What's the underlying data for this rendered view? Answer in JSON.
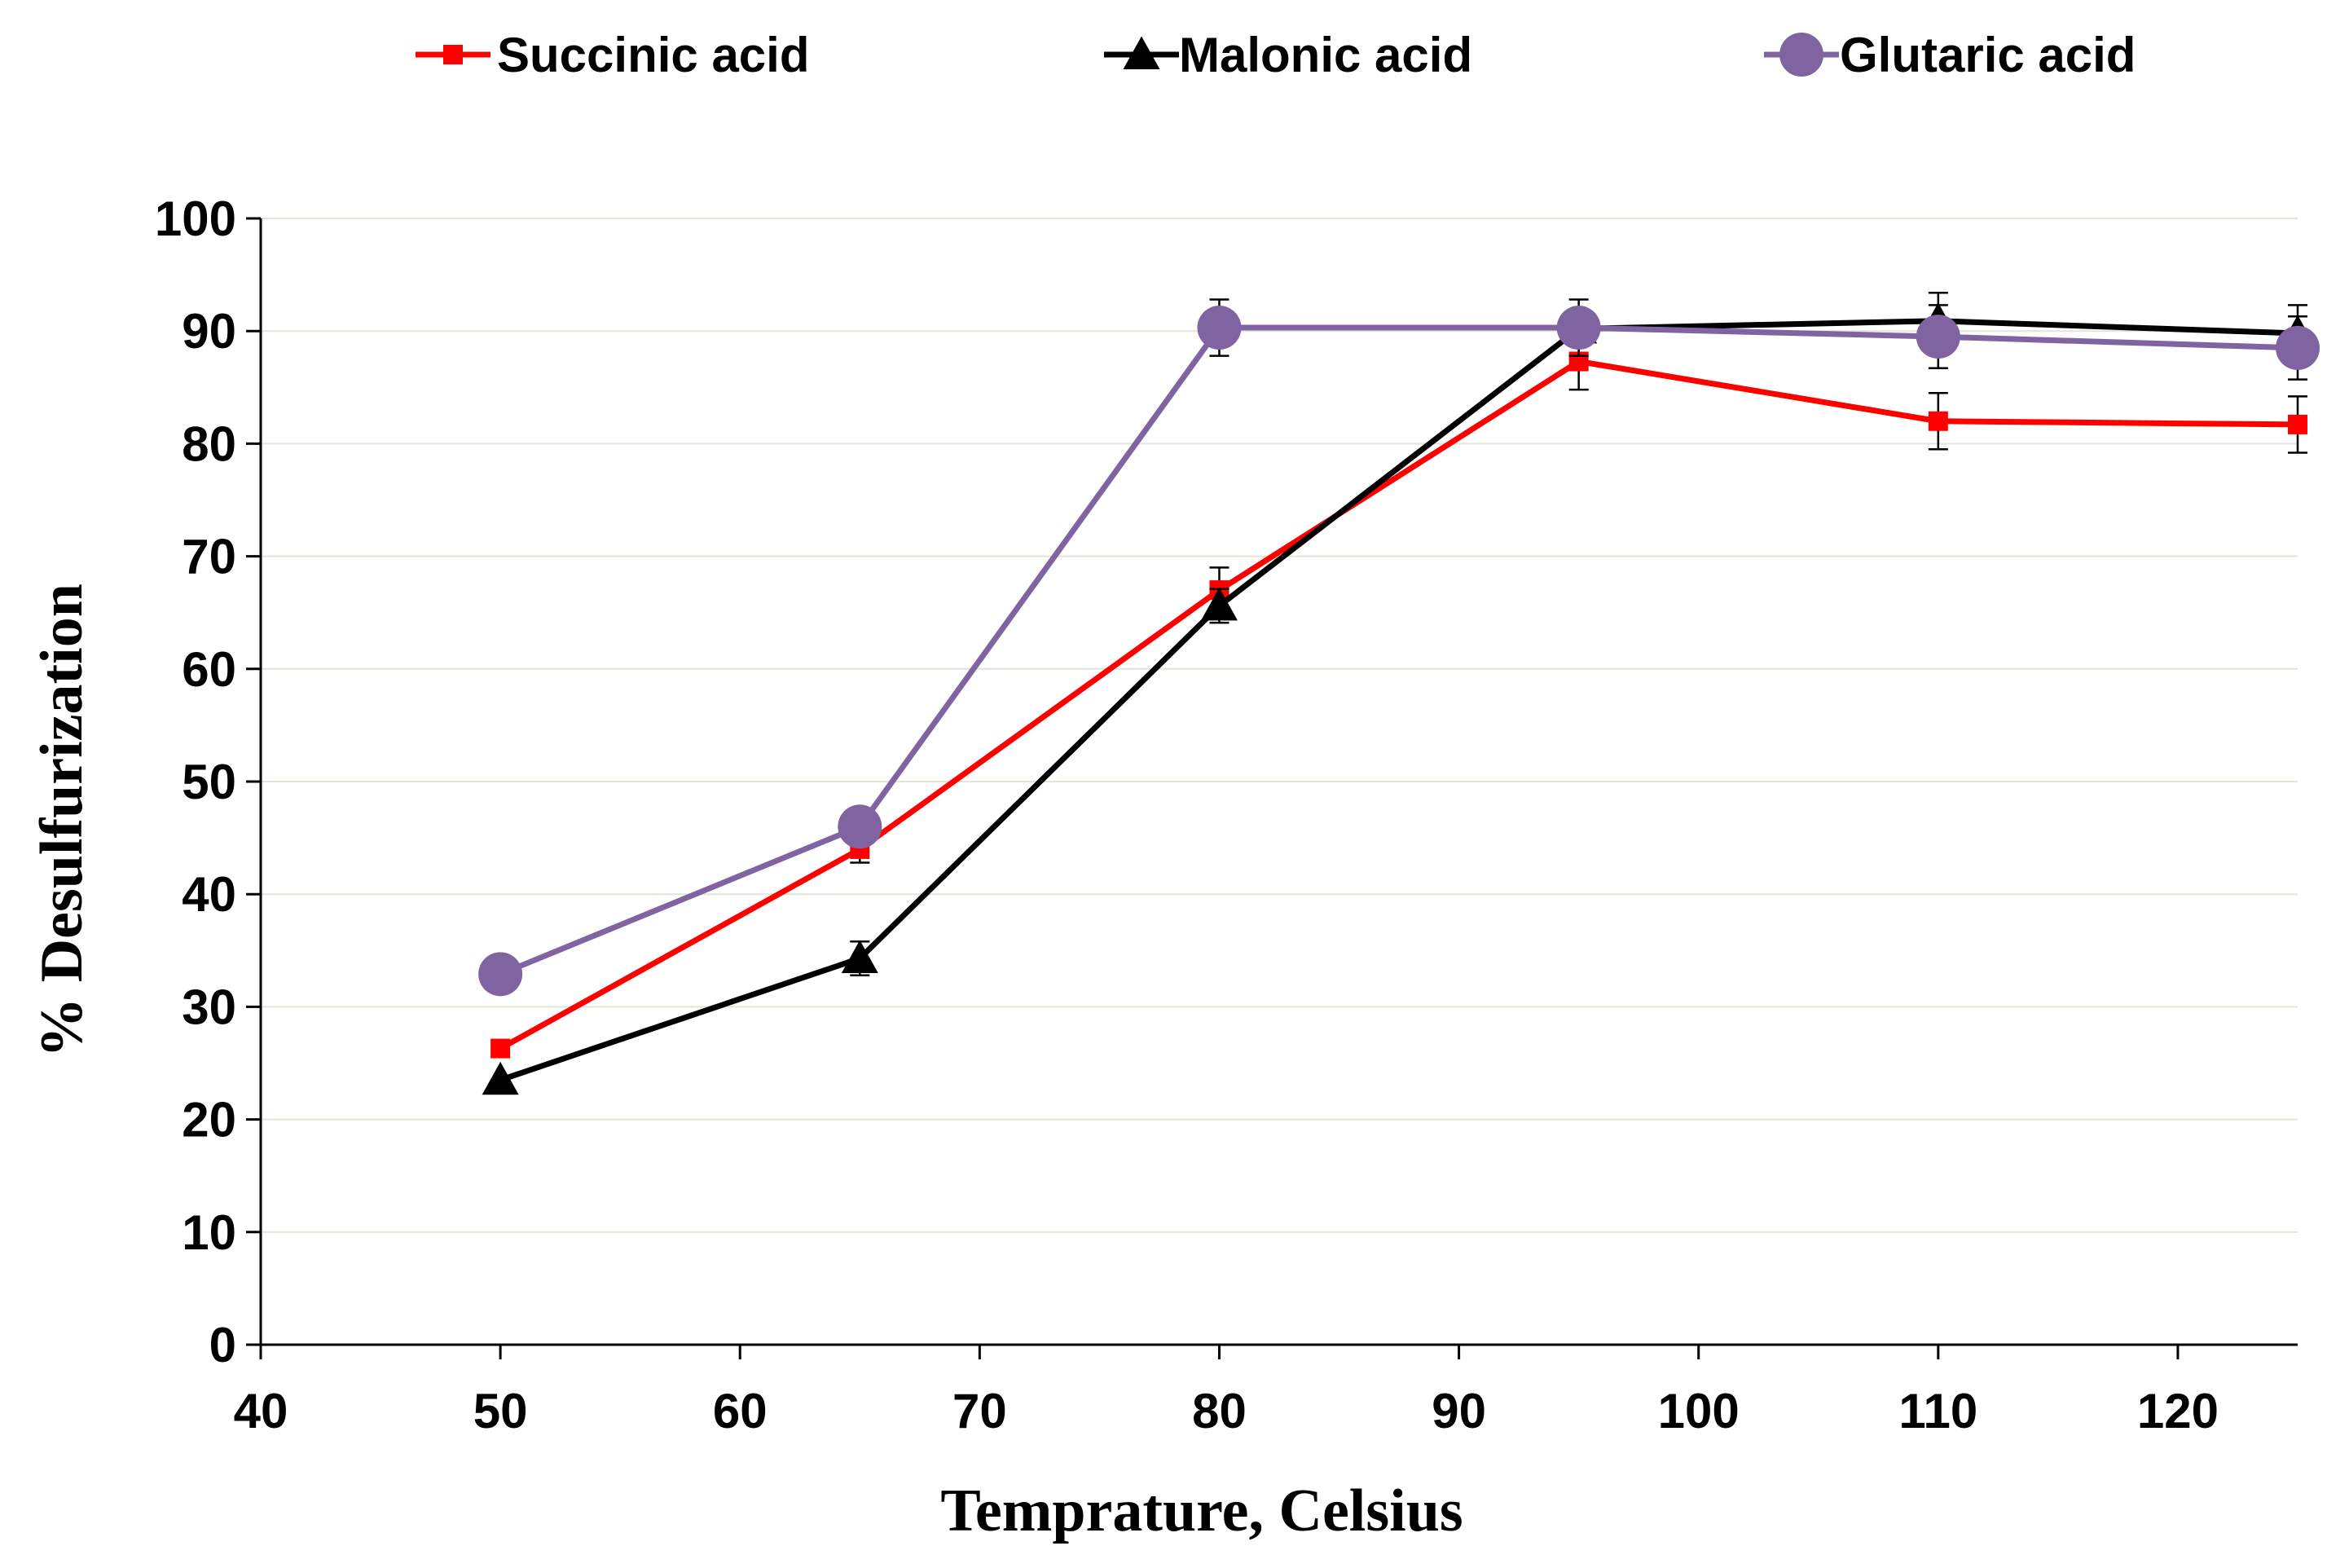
{
  "chart_data": {
    "type": "line",
    "title": "",
    "xlabel": "Temprature, Celsius",
    "ylabel": "% Desulfurization",
    "xlim": [
      40,
      125
    ],
    "ylim": [
      0,
      100
    ],
    "xticks": [
      40,
      50,
      60,
      70,
      80,
      90,
      100,
      110,
      120
    ],
    "yticks": [
      0,
      10,
      20,
      30,
      40,
      50,
      60,
      70,
      80,
      90,
      100
    ],
    "grid": "horizontal",
    "legend_position": "top",
    "series": [
      {
        "name": "Succinic acid",
        "color": "#ff0000",
        "marker": "square",
        "x": [
          50,
          65,
          80,
          95,
          110,
          125
        ],
        "y": [
          26.3,
          44.0,
          67.0,
          87.3,
          82.0,
          81.7
        ],
        "err": [
          0,
          1.2,
          2.0,
          2.5,
          2.5,
          2.5
        ]
      },
      {
        "name": "Malonic acid",
        "color": "#000000",
        "marker": "triangle",
        "x": [
          50,
          65,
          80,
          95,
          110,
          125
        ],
        "y": [
          23.5,
          34.3,
          65.6,
          90.2,
          90.9,
          89.8
        ],
        "err": [
          0,
          1.5,
          1.5,
          1.5,
          2.5,
          2.5
        ]
      },
      {
        "name": "Glutaric acid",
        "color": "#8064a2",
        "marker": "circle",
        "x": [
          50,
          65,
          80,
          95,
          110,
          125
        ],
        "y": [
          32.9,
          46.0,
          90.3,
          90.3,
          89.5,
          88.5
        ],
        "err": [
          0,
          0,
          2.5,
          2.5,
          2.8,
          2.8
        ]
      }
    ]
  }
}
